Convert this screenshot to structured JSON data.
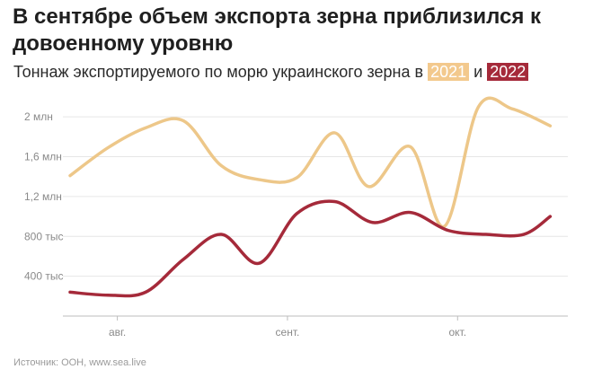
{
  "header": {
    "title": "В сентябре объем экспорта зерна приблизился к довоенному уровню",
    "subtitle_prefix": "Тоннаж экспортируемого по морю украинского зерна в",
    "subtitle_joiner": "и",
    "badge_2021": "2021",
    "badge_2022": "2022"
  },
  "source": "Источник: ООН, www.sea.live",
  "colors": {
    "series_2021": "#edc789",
    "series_2022": "#a52a3a",
    "grid": "#e6e6e6",
    "axis": "#bdbdbd"
  },
  "chart_data": {
    "type": "line",
    "title": "Тоннаж экспортируемого по морю украинского зерна",
    "xlabel": "",
    "ylabel": "",
    "ylim": [
      0,
      2200000
    ],
    "yticks": [
      400000,
      800000,
      1200000,
      1600000,
      2000000
    ],
    "ytick_labels": [
      "400 тыс",
      "800 тыс",
      "1,2 млн",
      "1,6 млн",
      "2 млн"
    ],
    "xlim": [
      0,
      13
    ],
    "xticks": [
      1.25,
      5.75,
      10.25
    ],
    "xtick_labels": [
      "авг.",
      "сент.",
      "окт."
    ],
    "series": [
      {
        "name": "2021",
        "color": "#edc789",
        "x": [
          0,
          1,
          2,
          3,
          4,
          5,
          6,
          7,
          7.9,
          9,
          9.9,
          10.8,
          11.7,
          12.7
        ],
        "values": [
          1410000,
          1690000,
          1890000,
          1960000,
          1510000,
          1370000,
          1390000,
          1840000,
          1300000,
          1700000,
          900000,
          2100000,
          2080000,
          1910000
        ]
      },
      {
        "name": "2022",
        "color": "#a52a3a",
        "x": [
          0,
          1,
          2,
          3,
          4,
          5,
          6,
          7,
          8,
          9,
          10,
          11,
          12,
          12.7
        ],
        "values": [
          240000,
          210000,
          240000,
          570000,
          820000,
          530000,
          1030000,
          1150000,
          940000,
          1040000,
          860000,
          820000,
          820000,
          1000000
        ]
      }
    ]
  }
}
